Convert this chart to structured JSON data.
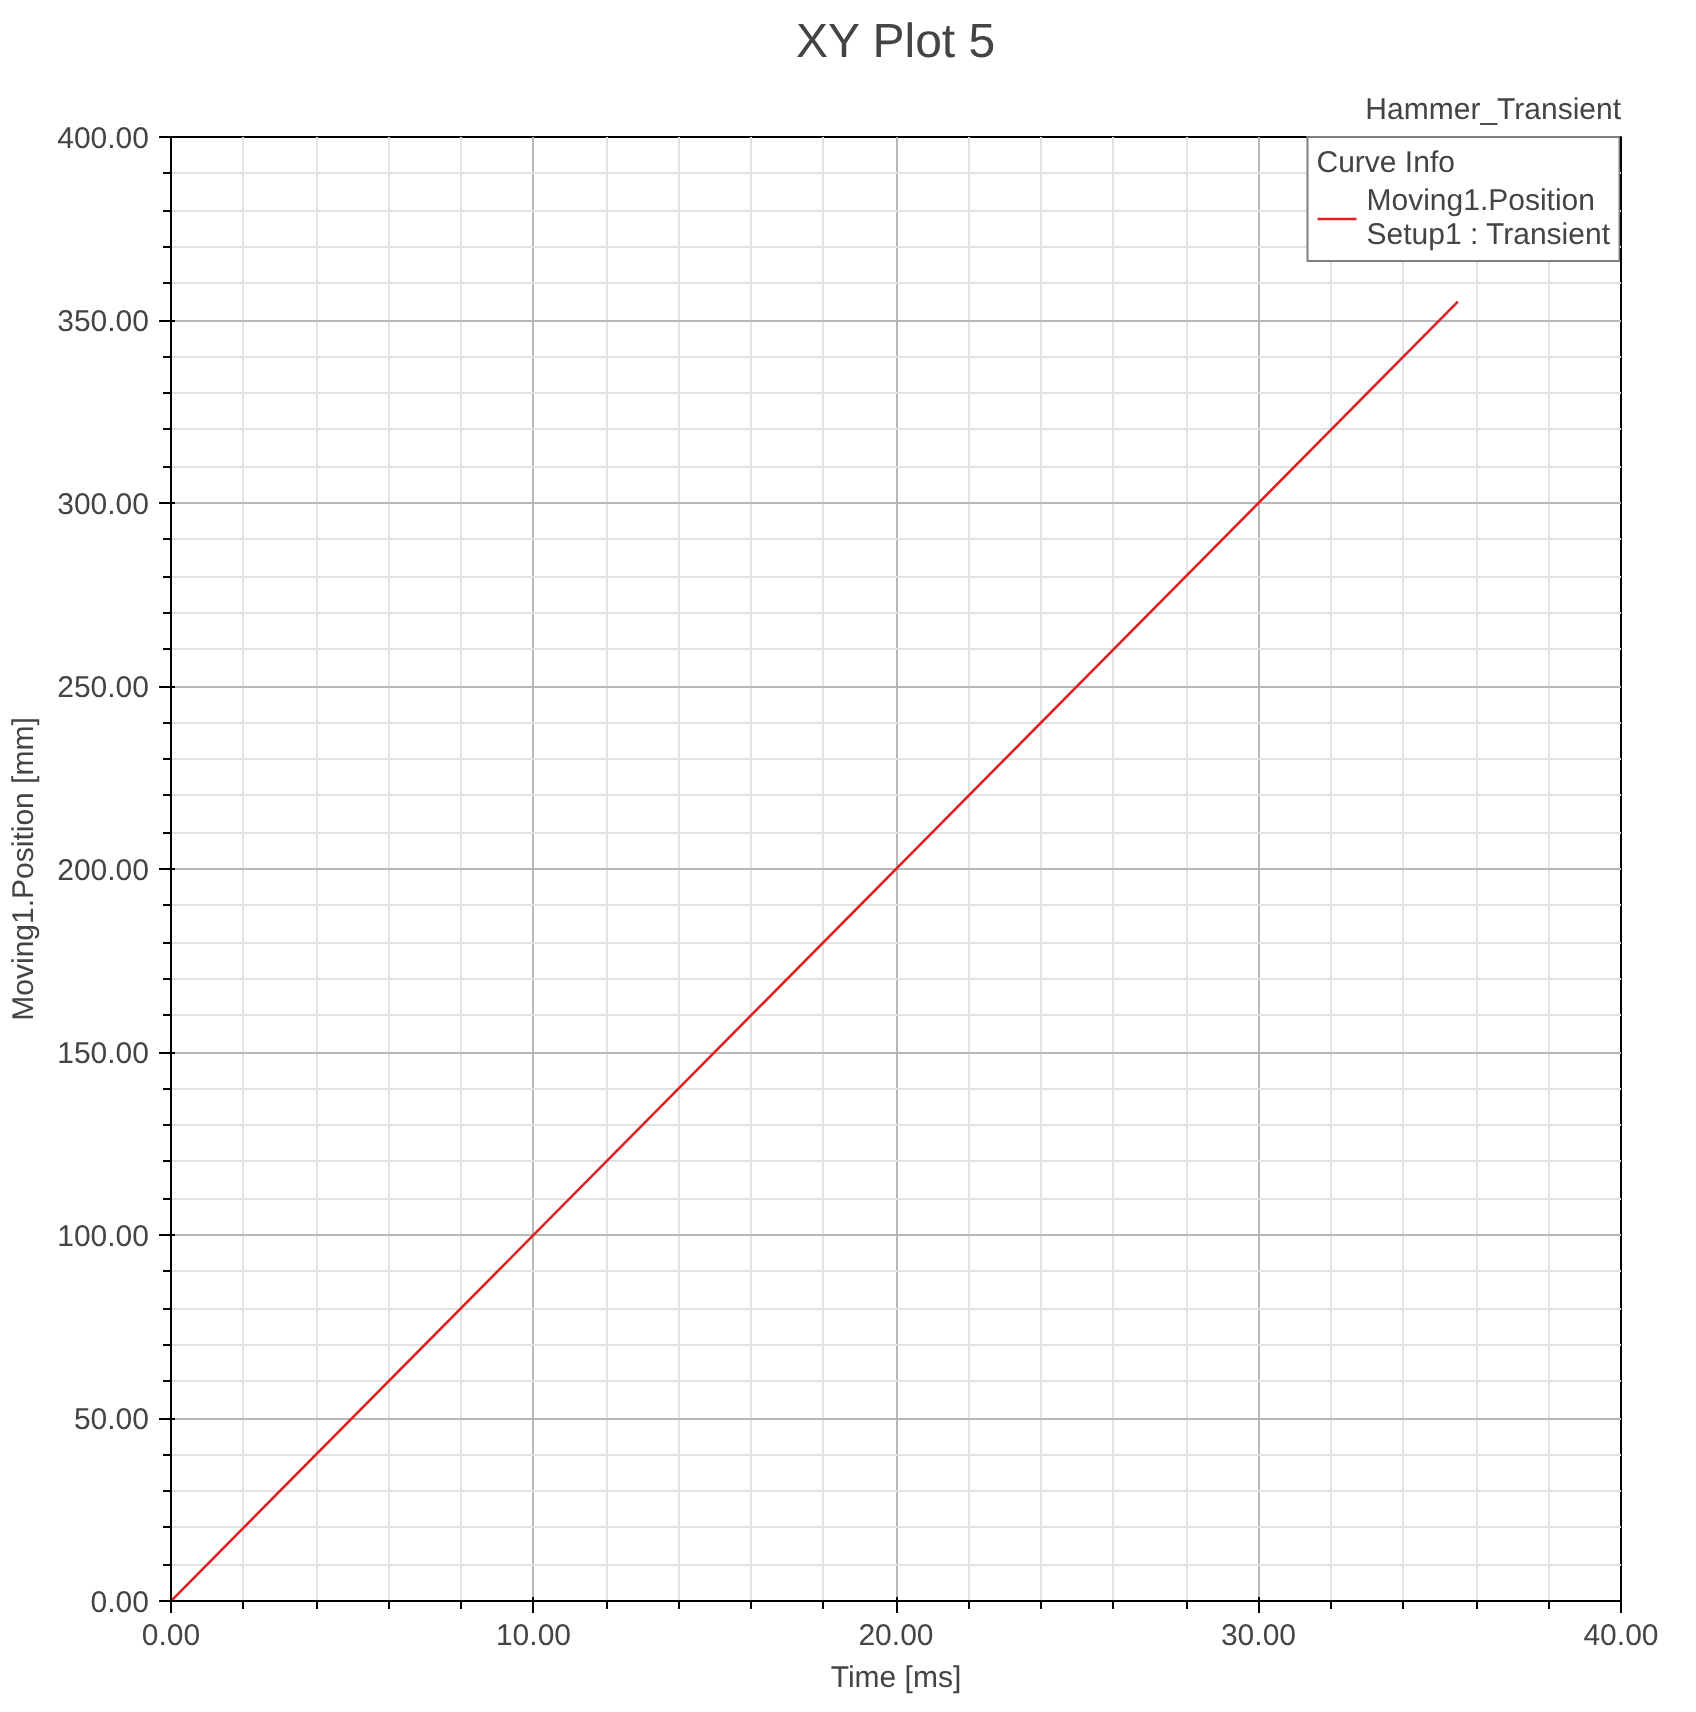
{
  "chart_data": {
    "type": "line",
    "title": "XY Plot 5",
    "xlabel": "Time [ms]",
    "ylabel": "Moving1.Position [mm]",
    "annotations": [
      "Hammer_Transient"
    ],
    "legend_title": "Curve Info",
    "legend": "top right",
    "grid": true,
    "xlim": [
      0,
      40
    ],
    "ylim": [
      0,
      400
    ],
    "xticks": [
      {
        "value": 0,
        "label": "0.00"
      },
      {
        "value": 10,
        "label": "10.00"
      },
      {
        "value": 20,
        "label": "20.00"
      },
      {
        "value": 30,
        "label": "30.00"
      },
      {
        "value": 40,
        "label": "40.00"
      }
    ],
    "yticks": [
      {
        "value": 0,
        "label": "0.00"
      },
      {
        "value": 50,
        "label": "50.00"
      },
      {
        "value": 100,
        "label": "100.00"
      },
      {
        "value": 150,
        "label": "150.00"
      },
      {
        "value": 200,
        "label": "200.00"
      },
      {
        "value": 250,
        "label": "250.00"
      },
      {
        "value": 300,
        "label": "300.00"
      },
      {
        "value": 350,
        "label": "350.00"
      },
      {
        "value": 400,
        "label": "400.00"
      }
    ],
    "series": [
      {
        "name": "Moving1.Position\nSetup1 : Transient",
        "color": "#e02020",
        "x": [
          0,
          35.5
        ],
        "values": [
          0,
          355
        ]
      }
    ]
  }
}
